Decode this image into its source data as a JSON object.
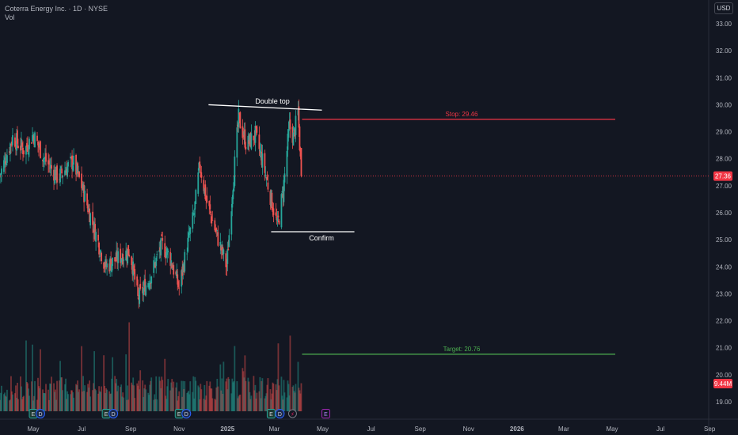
{
  "header": {
    "symbol_line": "Coterra Energy Inc. · 1D · NYSE",
    "vol_label": "Vol",
    "currency_button": "USD"
  },
  "colors": {
    "background": "#131722",
    "up": "#26a69a",
    "down": "#ef5350",
    "stop_line": "#f23645",
    "target_line": "#4caf50",
    "annotation_line": "#ffffff",
    "price_line": "#f23645"
  },
  "chart_data": {
    "type": "candlestick",
    "title": "Coterra Energy Inc. · 1D · NYSE",
    "ylim": [
      18.7,
      33.3
    ],
    "y_ticks": [
      "33.00",
      "32.00",
      "31.00",
      "30.00",
      "29.00",
      "28.00",
      "27.00",
      "26.00",
      "25.00",
      "24.00",
      "23.00",
      "22.00",
      "21.00",
      "20.00",
      "19.00"
    ],
    "x_ticks": [
      {
        "label": "May",
        "date": "2024-05-01"
      },
      {
        "label": "Jul",
        "date": "2024-07-01"
      },
      {
        "label": "Sep",
        "date": "2024-09-01"
      },
      {
        "label": "Nov",
        "date": "2024-11-01"
      },
      {
        "label": "2025",
        "date": "2025-01-01"
      },
      {
        "label": "Mar",
        "date": "2025-03-01"
      },
      {
        "label": "May",
        "date": "2025-05-01"
      },
      {
        "label": "Jul",
        "date": "2025-07-01"
      },
      {
        "label": "Sep",
        "date": "2025-09-01"
      },
      {
        "label": "Nov",
        "date": "2025-11-01"
      },
      {
        "label": "2026",
        "date": "2026-01-01"
      },
      {
        "label": "Mar",
        "date": "2026-03-01"
      },
      {
        "label": "May",
        "date": "2026-05-01"
      },
      {
        "label": "Jul",
        "date": "2026-07-01"
      },
      {
        "label": "Sep",
        "date": "2026-09-01"
      }
    ],
    "price_path": [
      {
        "date": "2024-03-20",
        "close": 27.4
      },
      {
        "date": "2024-04-05",
        "close": 28.8
      },
      {
        "date": "2024-04-20",
        "close": 28.3
      },
      {
        "date": "2024-05-01",
        "close": 28.9
      },
      {
        "date": "2024-05-15",
        "close": 28.0
      },
      {
        "date": "2024-06-01",
        "close": 27.3
      },
      {
        "date": "2024-06-10",
        "close": 27.6
      },
      {
        "date": "2024-06-20",
        "close": 27.9
      },
      {
        "date": "2024-07-01",
        "close": 27.0
      },
      {
        "date": "2024-07-15",
        "close": 25.6
      },
      {
        "date": "2024-07-31",
        "close": 24.0
      },
      {
        "date": "2024-08-15",
        "close": 24.3
      },
      {
        "date": "2024-08-31",
        "close": 24.6
      },
      {
        "date": "2024-09-10",
        "close": 22.8
      },
      {
        "date": "2024-09-25",
        "close": 23.6
      },
      {
        "date": "2024-10-10",
        "close": 24.8
      },
      {
        "date": "2024-10-20",
        "close": 24.4
      },
      {
        "date": "2024-11-01",
        "close": 23.2
      },
      {
        "date": "2024-11-10",
        "close": 24.6
      },
      {
        "date": "2024-11-20",
        "close": 26.0
      },
      {
        "date": "2024-11-27",
        "close": 27.8
      },
      {
        "date": "2024-12-05",
        "close": 26.5
      },
      {
        "date": "2024-12-15",
        "close": 25.5
      },
      {
        "date": "2024-12-31",
        "close": 24.0
      },
      {
        "date": "2025-01-07",
        "close": 26.8
      },
      {
        "date": "2025-01-15",
        "close": 29.5
      },
      {
        "date": "2025-01-25",
        "close": 28.5
      },
      {
        "date": "2025-02-05",
        "close": 28.9
      },
      {
        "date": "2025-02-15",
        "close": 27.8
      },
      {
        "date": "2025-02-25",
        "close": 26.5
      },
      {
        "date": "2025-03-05",
        "close": 25.5
      },
      {
        "date": "2025-03-12",
        "close": 26.8
      },
      {
        "date": "2025-03-20",
        "close": 29.2
      },
      {
        "date": "2025-03-25",
        "close": 28.8
      },
      {
        "date": "2025-03-31",
        "close": 29.7
      },
      {
        "date": "2025-04-04",
        "close": 27.36
      }
    ],
    "last_price": {
      "value": 27.36,
      "label": "27.36"
    },
    "last_volume": {
      "label": "9.44M"
    },
    "annotations": {
      "double_top": {
        "label": "Double top",
        "start": {
          "date": "2025-01-07",
          "price": 30.0
        },
        "end": {
          "date": "2025-04-30",
          "price": 29.8
        }
      },
      "confirm": {
        "label": "Confirm",
        "start": {
          "date": "2025-02-25",
          "price": 25.2
        },
        "end": {
          "date": "2025-06-10",
          "price": 25.2
        }
      },
      "stop": {
        "label": "Stop: 29.46",
        "value": 29.46,
        "start": "2025-04-05",
        "end": "2026-05-05"
      },
      "target": {
        "label": "Target: 20.76",
        "value": 20.76,
        "start": "2025-04-05",
        "end": "2026-05-05"
      }
    },
    "events": [
      {
        "type": "E",
        "date": "2024-05-01"
      },
      {
        "type": "D",
        "date": "2024-05-10"
      },
      {
        "type": "E",
        "date": "2024-08-01"
      },
      {
        "type": "D",
        "date": "2024-08-10"
      },
      {
        "type": "E",
        "date": "2024-11-01"
      },
      {
        "type": "D",
        "date": "2024-11-10"
      },
      {
        "type": "E",
        "date": "2025-02-25"
      },
      {
        "type": "D",
        "date": "2025-03-08"
      },
      {
        "type": "split",
        "date": "2025-03-24"
      },
      {
        "type": "E",
        "date": "2025-05-05"
      }
    ]
  }
}
